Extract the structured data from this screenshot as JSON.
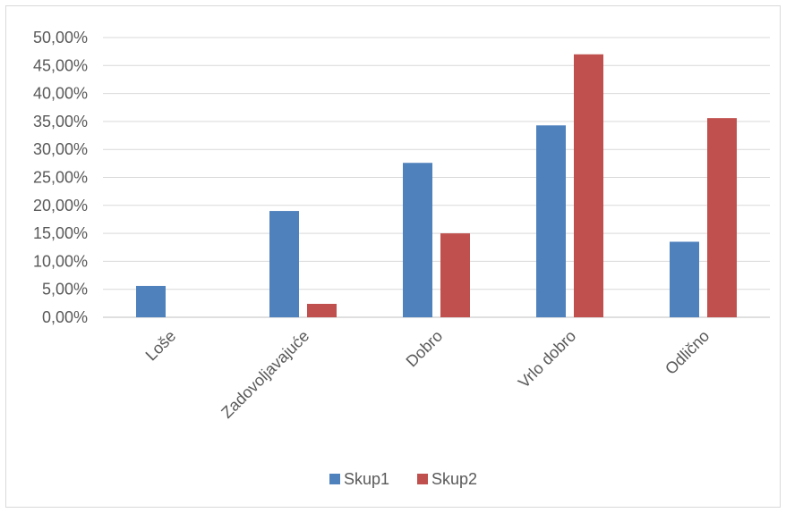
{
  "chart_data": {
    "type": "bar",
    "categories": [
      "Loše",
      "Zadovoljavajuće",
      "Dobro",
      "Vrlo dobro",
      "Odlično"
    ],
    "series": [
      {
        "name": "Skup1",
        "color": "#4f81bd",
        "values": [
          5.6,
          19.0,
          27.6,
          34.3,
          13.5
        ]
      },
      {
        "name": "Skup2",
        "color": "#c0504d",
        "values": [
          0.0,
          2.4,
          15.0,
          47.0,
          35.6
        ]
      }
    ],
    "y_ticks": [
      "0,00%",
      "5,00%",
      "10,00%",
      "15,00%",
      "20,00%",
      "25,00%",
      "30,00%",
      "35,00%",
      "40,00%",
      "45,00%",
      "50,00%"
    ],
    "ylim": [
      0,
      50
    ],
    "y_unit": "%",
    "grid": true,
    "legend_position": "bottom"
  }
}
